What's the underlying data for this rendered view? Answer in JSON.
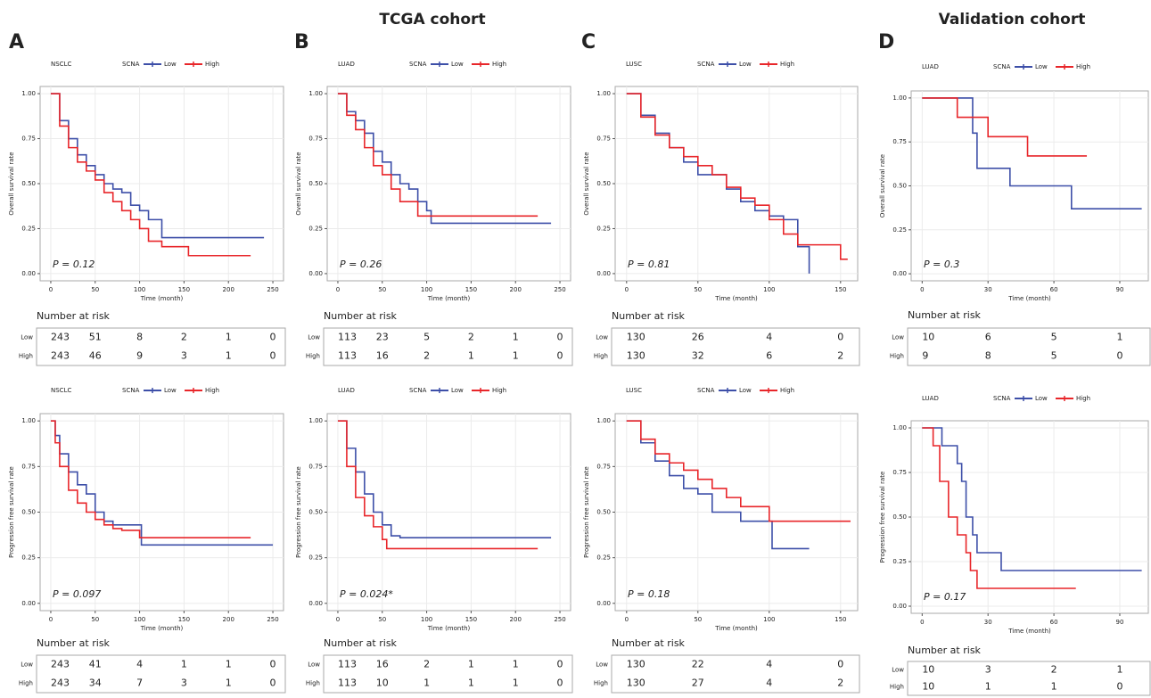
{
  "figure": {
    "headers": [
      "TCGA cohort",
      "Validation cohort"
    ],
    "panels": [
      "A",
      "B",
      "C",
      "D"
    ]
  },
  "chart_data": [
    {
      "type": "step",
      "title": "NSCLC",
      "legend_title": "SCNA",
      "xlabel": "Time (month)",
      "ylabel": "Overall survival rate",
      "p_label": "P = 0.12",
      "xlim": [
        -12,
        262
      ],
      "xticks": [
        0,
        50,
        100,
        150,
        200,
        250
      ],
      "ylim": [
        -0.04,
        1.04
      ],
      "yticks": [
        {
          "value": 0,
          "label": "0.00"
        },
        {
          "value": 0.25,
          "label": "0.25"
        },
        {
          "value": 0.5,
          "label": "0.50"
        },
        {
          "value": 0.75,
          "label": "0.75"
        },
        {
          "value": 1,
          "label": "1.00"
        }
      ],
      "grid": true,
      "series": [
        {
          "name": "Low",
          "color": "#3d4fa8",
          "x": [
            0,
            10,
            20,
            30,
            40,
            50,
            60,
            70,
            80,
            90,
            100,
            110,
            125,
            240
          ],
          "values": [
            1,
            0.85,
            0.75,
            0.66,
            0.6,
            0.55,
            0.5,
            0.47,
            0.45,
            0.38,
            0.35,
            0.3,
            0.2,
            0.2
          ]
        },
        {
          "name": "High",
          "color": "#e8262a",
          "x": [
            0,
            10,
            20,
            30,
            40,
            50,
            60,
            70,
            80,
            90,
            100,
            110,
            125,
            155,
            225
          ],
          "values": [
            1,
            0.82,
            0.7,
            0.62,
            0.57,
            0.52,
            0.45,
            0.4,
            0.35,
            0.3,
            0.25,
            0.18,
            0.15,
            0.1,
            0.1
          ]
        }
      ],
      "risk_table": {
        "title": "Number at risk",
        "rows": [
          {
            "name": "Low",
            "values": [
              243,
              51,
              8,
              2,
              1,
              0
            ]
          },
          {
            "name": "High",
            "values": [
              243,
              46,
              9,
              3,
              1,
              0
            ]
          }
        ]
      }
    },
    {
      "type": "step",
      "title": "LUAD",
      "legend_title": "SCNA",
      "xlabel": "Time (month)",
      "ylabel": "Overall survival rate",
      "p_label": "P = 0.26",
      "xlim": [
        -12,
        262
      ],
      "xticks": [
        0,
        50,
        100,
        150,
        200,
        250
      ],
      "ylim": [
        -0.04,
        1.04
      ],
      "yticks": [
        {
          "value": 0,
          "label": "0.00"
        },
        {
          "value": 0.25,
          "label": "0.25"
        },
        {
          "value": 0.5,
          "label": "0.50"
        },
        {
          "value": 0.75,
          "label": "0.75"
        },
        {
          "value": 1,
          "label": "1.00"
        }
      ],
      "grid": true,
      "series": [
        {
          "name": "Low",
          "color": "#3d4fa8",
          "x": [
            0,
            10,
            20,
            30,
            40,
            50,
            60,
            70,
            80,
            90,
            100,
            105,
            240
          ],
          "values": [
            1,
            0.9,
            0.85,
            0.78,
            0.68,
            0.62,
            0.55,
            0.5,
            0.47,
            0.4,
            0.35,
            0.28,
            0.28
          ]
        },
        {
          "name": "High",
          "color": "#e8262a",
          "x": [
            0,
            10,
            20,
            30,
            40,
            50,
            60,
            70,
            85,
            90,
            225
          ],
          "values": [
            1,
            0.88,
            0.8,
            0.7,
            0.6,
            0.55,
            0.47,
            0.4,
            0.4,
            0.32,
            0.32
          ]
        }
      ],
      "risk_table": {
        "title": "Number at risk",
        "rows": [
          {
            "name": "Low",
            "values": [
              113,
              23,
              5,
              2,
              1,
              0
            ]
          },
          {
            "name": "High",
            "values": [
              113,
              16,
              2,
              1,
              1,
              0
            ]
          }
        ]
      }
    },
    {
      "type": "step",
      "title": "LUSC",
      "legend_title": "SCNA",
      "xlabel": "Time (month)",
      "ylabel": "Overall survival rate",
      "p_label": "P = 0.81",
      "xlim": [
        -8,
        162
      ],
      "xticks": [
        0,
        50,
        100,
        150
      ],
      "ylim": [
        -0.04,
        1.04
      ],
      "yticks": [
        {
          "value": 0,
          "label": "0.00"
        },
        {
          "value": 0.25,
          "label": "0.25"
        },
        {
          "value": 0.5,
          "label": "0.50"
        },
        {
          "value": 0.75,
          "label": "0.75"
        },
        {
          "value": 1,
          "label": "1.00"
        }
      ],
      "grid": true,
      "series": [
        {
          "name": "Low",
          "color": "#3d4fa8",
          "x": [
            0,
            10,
            20,
            30,
            40,
            50,
            60,
            70,
            80,
            90,
            100,
            110,
            120,
            128
          ],
          "values": [
            1,
            0.88,
            0.78,
            0.7,
            0.62,
            0.55,
            0.55,
            0.47,
            0.4,
            0.35,
            0.32,
            0.3,
            0.15,
            0
          ]
        },
        {
          "name": "High",
          "color": "#e8262a",
          "x": [
            0,
            10,
            20,
            30,
            40,
            50,
            60,
            70,
            80,
            90,
            100,
            110,
            120,
            150,
            155
          ],
          "values": [
            1,
            0.87,
            0.77,
            0.7,
            0.65,
            0.6,
            0.55,
            0.48,
            0.42,
            0.38,
            0.3,
            0.22,
            0.16,
            0.08,
            0.08
          ]
        }
      ],
      "risk_table": {
        "title": "Number at risk",
        "rows": [
          {
            "name": "Low",
            "values": [
              130,
              26,
              4,
              0
            ]
          },
          {
            "name": "High",
            "values": [
              130,
              32,
              6,
              2
            ]
          }
        ]
      }
    },
    {
      "type": "step",
      "title": "LUAD",
      "legend_title": "SCNA",
      "xlabel": "Time (month)",
      "ylabel": "Overall survival rate",
      "p_label": "P = 0.3",
      "xlim": [
        -5,
        103
      ],
      "xticks": [
        0,
        30,
        60,
        90
      ],
      "ylim": [
        -0.04,
        1.04
      ],
      "yticks": [
        {
          "value": 0,
          "label": "0.00"
        },
        {
          "value": 0.25,
          "label": "0.25"
        },
        {
          "value": 0.5,
          "label": "0.50"
        },
        {
          "value": 0.75,
          "label": "0.75"
        },
        {
          "value": 1,
          "label": "1.00"
        }
      ],
      "grid": true,
      "series": [
        {
          "name": "Low",
          "color": "#3d4fa8",
          "x": [
            0,
            23,
            25,
            40,
            68,
            100
          ],
          "values": [
            1,
            0.8,
            0.6,
            0.5,
            0.37,
            0.37
          ]
        },
        {
          "name": "High",
          "color": "#e8262a",
          "x": [
            0,
            16,
            30,
            48,
            75
          ],
          "values": [
            1,
            0.89,
            0.78,
            0.67,
            0.67
          ]
        }
      ],
      "risk_table": {
        "title": "Number at risk",
        "rows": [
          {
            "name": "Low",
            "values": [
              10,
              6,
              5,
              1
            ]
          },
          {
            "name": "High",
            "values": [
              9,
              8,
              5,
              0
            ]
          }
        ]
      }
    },
    {
      "type": "step",
      "title": "NSCLC",
      "legend_title": "SCNA",
      "xlabel": "Time (month)",
      "ylabel": "Progression free survival rate",
      "p_label": "P = 0.097",
      "xlim": [
        -12,
        262
      ],
      "xticks": [
        0,
        50,
        100,
        150,
        200,
        250
      ],
      "ylim": [
        -0.04,
        1.04
      ],
      "yticks": [
        {
          "value": 0,
          "label": "0.00"
        },
        {
          "value": 0.25,
          "label": "0.25"
        },
        {
          "value": 0.5,
          "label": "0.50"
        },
        {
          "value": 0.75,
          "label": "0.75"
        },
        {
          "value": 1,
          "label": "1.00"
        }
      ],
      "grid": true,
      "series": [
        {
          "name": "Low",
          "color": "#3d4fa8",
          "x": [
            0,
            5,
            10,
            20,
            30,
            40,
            50,
            60,
            70,
            80,
            100,
            102,
            250
          ],
          "values": [
            1,
            0.92,
            0.82,
            0.72,
            0.65,
            0.6,
            0.5,
            0.45,
            0.43,
            0.43,
            0.43,
            0.32,
            0.32
          ]
        },
        {
          "name": "High",
          "color": "#e8262a",
          "x": [
            0,
            5,
            10,
            20,
            30,
            40,
            50,
            60,
            70,
            80,
            100,
            225
          ],
          "values": [
            1,
            0.88,
            0.75,
            0.62,
            0.55,
            0.5,
            0.46,
            0.43,
            0.41,
            0.4,
            0.36,
            0.36
          ]
        }
      ],
      "risk_table": {
        "title": "Number at risk",
        "rows": [
          {
            "name": "Low",
            "values": [
              243,
              41,
              4,
              1,
              1,
              0
            ]
          },
          {
            "name": "High",
            "values": [
              243,
              34,
              7,
              3,
              1,
              0
            ]
          }
        ]
      }
    },
    {
      "type": "step",
      "title": "LUAD",
      "legend_title": "SCNA",
      "xlabel": "Time (month)",
      "ylabel": "Progression free survival rate",
      "p_label": "P = 0.024*",
      "xlim": [
        -12,
        262
      ],
      "xticks": [
        0,
        50,
        100,
        150,
        200,
        250
      ],
      "ylim": [
        -0.04,
        1.04
      ],
      "yticks": [
        {
          "value": 0,
          "label": "0.00"
        },
        {
          "value": 0.25,
          "label": "0.25"
        },
        {
          "value": 0.5,
          "label": "0.50"
        },
        {
          "value": 0.75,
          "label": "0.75"
        },
        {
          "value": 1,
          "label": "1.00"
        }
      ],
      "grid": true,
      "series": [
        {
          "name": "Low",
          "color": "#3d4fa8",
          "x": [
            0,
            10,
            20,
            30,
            40,
            50,
            60,
            70,
            240
          ],
          "values": [
            1,
            0.85,
            0.72,
            0.6,
            0.5,
            0.43,
            0.37,
            0.36,
            0.36
          ]
        },
        {
          "name": "High",
          "color": "#e8262a",
          "x": [
            0,
            10,
            20,
            30,
            40,
            50,
            55,
            225
          ],
          "values": [
            1,
            0.75,
            0.58,
            0.48,
            0.42,
            0.35,
            0.3,
            0.3
          ]
        }
      ],
      "risk_table": {
        "title": "Number at risk",
        "rows": [
          {
            "name": "Low",
            "values": [
              113,
              16,
              2,
              1,
              1,
              0
            ]
          },
          {
            "name": "High",
            "values": [
              113,
              10,
              1,
              1,
              1,
              0
            ]
          }
        ]
      }
    },
    {
      "type": "step",
      "title": "LUSC",
      "legend_title": "SCNA",
      "xlabel": "Time (month)",
      "ylabel": "Progression free survival rate",
      "p_label": "P = 0.18",
      "xlim": [
        -8,
        162
      ],
      "xticks": [
        0,
        50,
        100,
        150
      ],
      "ylim": [
        -0.04,
        1.04
      ],
      "yticks": [
        {
          "value": 0,
          "label": "0.00"
        },
        {
          "value": 0.25,
          "label": "0.25"
        },
        {
          "value": 0.5,
          "label": "0.50"
        },
        {
          "value": 0.75,
          "label": "0.75"
        },
        {
          "value": 1,
          "label": "1.00"
        }
      ],
      "grid": true,
      "series": [
        {
          "name": "Low",
          "color": "#3d4fa8",
          "x": [
            0,
            10,
            20,
            30,
            40,
            50,
            60,
            80,
            100,
            102,
            128
          ],
          "values": [
            1,
            0.88,
            0.78,
            0.7,
            0.63,
            0.6,
            0.5,
            0.45,
            0.45,
            0.3,
            0.3
          ]
        },
        {
          "name": "High",
          "color": "#e8262a",
          "x": [
            0,
            10,
            20,
            30,
            40,
            50,
            60,
            70,
            80,
            100,
            157
          ],
          "values": [
            1,
            0.9,
            0.82,
            0.77,
            0.73,
            0.68,
            0.63,
            0.58,
            0.53,
            0.45,
            0.45
          ]
        }
      ],
      "risk_table": {
        "title": "Number at risk",
        "rows": [
          {
            "name": "Low",
            "values": [
              130,
              22,
              4,
              0
            ]
          },
          {
            "name": "High",
            "values": [
              130,
              27,
              4,
              2
            ]
          }
        ]
      }
    },
    {
      "type": "step",
      "title": "LUAD",
      "legend_title": "SCNA",
      "xlabel": "Time (month)",
      "ylabel": "Progression free survival rate",
      "p_label": "P = 0.17",
      "xlim": [
        -5,
        103
      ],
      "xticks": [
        0,
        30,
        60,
        90
      ],
      "ylim": [
        -0.04,
        1.04
      ],
      "yticks": [
        {
          "value": 0,
          "label": "0.00"
        },
        {
          "value": 0.25,
          "label": "0.25"
        },
        {
          "value": 0.5,
          "label": "0.50"
        },
        {
          "value": 0.75,
          "label": "0.75"
        },
        {
          "value": 1,
          "label": "1.00"
        }
      ],
      "grid": true,
      "series": [
        {
          "name": "Low",
          "color": "#3d4fa8",
          "x": [
            0,
            9,
            16,
            18,
            20,
            23,
            25,
            36,
            100
          ],
          "values": [
            1,
            0.9,
            0.8,
            0.7,
            0.5,
            0.4,
            0.3,
            0.2,
            0.2
          ]
        },
        {
          "name": "High",
          "color": "#e8262a",
          "x": [
            0,
            5,
            8,
            12,
            16,
            20,
            22,
            25,
            70
          ],
          "values": [
            1,
            0.9,
            0.7,
            0.5,
            0.4,
            0.3,
            0.2,
            0.1,
            0.1
          ]
        }
      ],
      "risk_table": {
        "title": "Number at risk",
        "rows": [
          {
            "name": "Low",
            "values": [
              10,
              3,
              2,
              1
            ]
          },
          {
            "name": "High",
            "values": [
              10,
              1,
              1,
              0
            ]
          }
        ]
      }
    }
  ]
}
